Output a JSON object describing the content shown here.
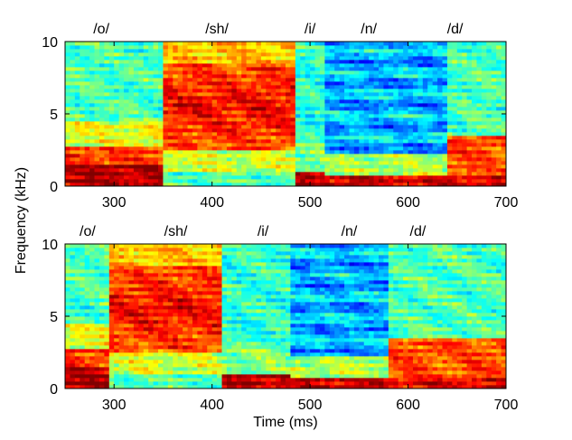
{
  "chart_data": [
    {
      "type": "heatmap",
      "panel": "top",
      "xlim": [
        250,
        700
      ],
      "ylim": [
        0,
        10
      ],
      "xticks": [
        300,
        400,
        500,
        600,
        700
      ],
      "yticks": [
        0,
        5,
        10
      ],
      "colormap": "jet",
      "phonemes": [
        {
          "label": "/o/",
          "x": 287
        },
        {
          "label": "/sh/",
          "x": 405
        },
        {
          "label": "/i/",
          "x": 500
        },
        {
          "label": "/n/",
          "x": 560
        },
        {
          "label": "/d/",
          "x": 648
        }
      ],
      "segments": [
        {
          "label": "/o/",
          "start": 250,
          "end": 350
        },
        {
          "label": "/sh/",
          "start": 350,
          "end": 485
        },
        {
          "label": "/i/",
          "start": 485,
          "end": 515
        },
        {
          "label": "/n/",
          "start": 515,
          "end": 640
        },
        {
          "label": "/d/",
          "start": 640,
          "end": 700
        }
      ]
    },
    {
      "type": "heatmap",
      "panel": "bottom",
      "xlim": [
        250,
        700
      ],
      "ylim": [
        0,
        10
      ],
      "xticks": [
        300,
        400,
        500,
        600,
        700
      ],
      "yticks": [
        0,
        5,
        10
      ],
      "colormap": "jet",
      "phonemes": [
        {
          "label": "/o/",
          "x": 273
        },
        {
          "label": "/sh/",
          "x": 363
        },
        {
          "label": "/i/",
          "x": 452
        },
        {
          "label": "/n/",
          "x": 540
        },
        {
          "label": "/d/",
          "x": 610
        }
      ],
      "segments": [
        {
          "label": "/o/",
          "start": 250,
          "end": 295
        },
        {
          "label": "/sh/",
          "start": 295,
          "end": 410
        },
        {
          "label": "/i/",
          "start": 410,
          "end": 480
        },
        {
          "label": "/n/",
          "start": 480,
          "end": 580
        },
        {
          "label": "/d/",
          "start": 580,
          "end": 700
        }
      ]
    }
  ],
  "axes": {
    "ylabel": "Frequency (kHz)",
    "xlabel": "Time (ms)"
  }
}
